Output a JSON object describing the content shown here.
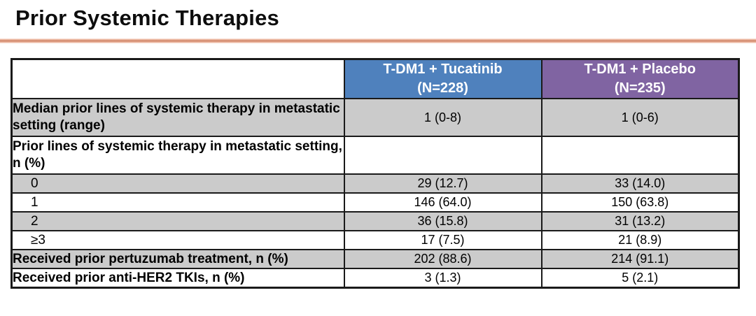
{
  "slide": {
    "title": "Prior Systemic Therapies"
  },
  "table": {
    "header": {
      "empty_label": "",
      "tucatinib": {
        "line1": "T-DM1 + Tucatinib",
        "line2": "(N=228)"
      },
      "placebo": {
        "line1": "T-DM1 + Placebo",
        "line2": "(N=235)"
      }
    },
    "rows": [
      {
        "label": "Median prior lines of systemic therapy in metastatic setting (range)",
        "tucatinib": "1 (0-8)",
        "placebo": "1 (0-6)"
      },
      {
        "label": "Prior lines of systemic therapy in metastatic setting, n (%)",
        "tucatinib": "",
        "placebo": ""
      },
      {
        "label": "0",
        "tucatinib": "29 (12.7)",
        "placebo": "33 (14.0)"
      },
      {
        "label": "1",
        "tucatinib": "146 (64.0)",
        "placebo": "150 (63.8)"
      },
      {
        "label": "2",
        "tucatinib": "36 (15.8)",
        "placebo": "31 (13.2)"
      },
      {
        "label": "≥3",
        "tucatinib": "17 (7.5)",
        "placebo": "21 (8.9)"
      },
      {
        "label": "Received prior pertuzumab treatment, n (%)",
        "tucatinib": "202 (88.6)",
        "placebo": "214 (91.1)"
      },
      {
        "label": "Received prior anti-HER2 TKIs, n (%)",
        "tucatinib": "3 (1.3)",
        "placebo": "5 (2.1)"
      }
    ]
  },
  "colors": {
    "tucatinib_header_bg": "#4F81BD",
    "placebo_header_bg": "#8064A2",
    "shaded_row_bg": "#CBCBCB",
    "title_divider": "#CF8466",
    "header_text": "#FFFFFF",
    "body_text": "#000000",
    "table_border": "#1A1A1A"
  }
}
